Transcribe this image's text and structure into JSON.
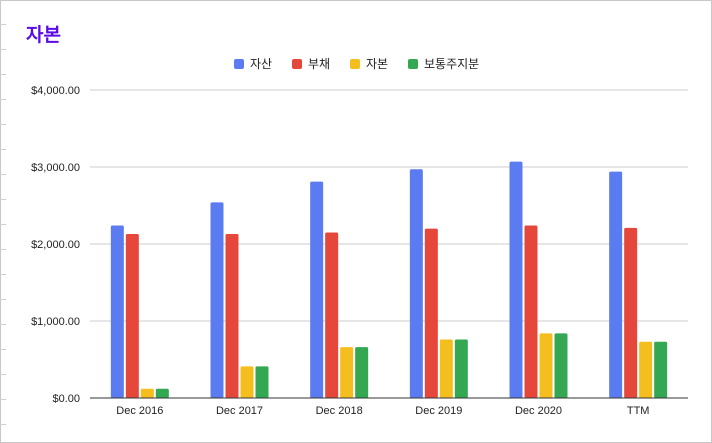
{
  "chart_data": {
    "type": "bar",
    "title": "자본",
    "categories": [
      "Dec 2016",
      "Dec 2017",
      "Dec 2018",
      "Dec 2019",
      "Dec 2020",
      "TTM"
    ],
    "series": [
      {
        "name": "자산",
        "color": "#5b7cf0",
        "values": [
          2240,
          2540,
          2810,
          2970,
          3070,
          2940
        ]
      },
      {
        "name": "부채",
        "color": "#e5483a",
        "values": [
          2130,
          2130,
          2150,
          2200,
          2240,
          2210
        ]
      },
      {
        "name": "자본",
        "color": "#f5be1f",
        "values": [
          120,
          410,
          660,
          760,
          840,
          730
        ]
      },
      {
        "name": "보통주지분",
        "color": "#33a752",
        "values": [
          120,
          410,
          660,
          760,
          840,
          730
        ]
      }
    ],
    "yticks": [
      "$0.00",
      "$1,000.00",
      "$2,000.00",
      "$3,000.00",
      "$4,000.00"
    ],
    "ytick_values": [
      0,
      1000,
      2000,
      3000,
      4000
    ],
    "ylim": [
      0,
      4000
    ],
    "grid": true,
    "legend_position": "top-center"
  }
}
